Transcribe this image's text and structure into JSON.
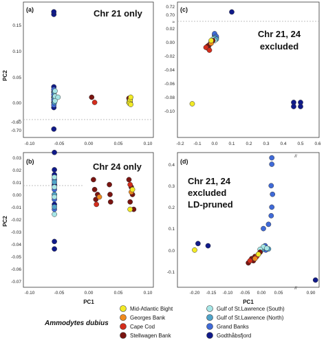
{
  "figure": {
    "x_axis_label": "PC1",
    "y_axis_label": "PC2",
    "species": "Ammodytes dubius",
    "series_colors": {
      "Mid-Atlantic Bight": "#f2ea25",
      "Georges Bank": "#f08a1e",
      "Cape Cod": "#d42d1c",
      "Stellwagen Bank": "#7a1410",
      "Gulf of St.Lawrence (South)": "#a6e6e6",
      "Gulf of St.Lawrence (North)": "#4fa3c9",
      "Grand Banks": "#3f6ad8",
      "Godthåbsfjord": "#101a8a"
    },
    "legend": {
      "left": [
        "Mid-Atlantic Bight",
        "Georges Bank",
        "Cape Cod",
        "Stellwagen Bank"
      ],
      "right": [
        "Gulf of St.Lawrence (South)",
        "Gulf of St.Lawrence (North)",
        "Grand Banks",
        "Godthåbsfjord"
      ]
    }
  },
  "chart_data": [
    {
      "type": "scatter",
      "panel": "(a)",
      "annotation": [
        "Chr 21 only"
      ],
      "xlim": [
        -0.1,
        0.12
      ],
      "x_ticks": [
        "-0.10",
        "-0.05",
        "0.00",
        "0.05",
        "0.10"
      ],
      "y_ticks": [
        "-0.70",
        "-0.60",
        "0.00",
        "0.05",
        "0.10",
        "0.15"
      ],
      "y_axis_break": "between -0.60 and 0.00",
      "series": [
        {
          "name": "Godthåbsfjord",
          "points": [
            [
              -0.059,
              0.17
            ],
            [
              -0.059,
              0.175
            ],
            [
              -0.059,
              0.03
            ],
            [
              -0.059,
              0.02
            ],
            [
              -0.059,
              0.01
            ],
            [
              -0.059,
              0.0
            ],
            [
              -0.059,
              -0.01
            ],
            [
              -0.059,
              -0.69
            ]
          ]
        },
        {
          "name": "Grand Banks",
          "points": [
            [
              -0.059,
              0.025
            ],
            [
              -0.059,
              0.015
            ],
            [
              -0.059,
              0.005
            ],
            [
              -0.059,
              -0.005
            ]
          ]
        },
        {
          "name": "Gulf of St.Lawrence (North)",
          "points": [
            [
              -0.058,
              0.02
            ],
            [
              -0.058,
              0.01
            ],
            [
              -0.058,
              0.0
            ]
          ]
        },
        {
          "name": "Gulf of St.Lawrence (South)",
          "points": [
            [
              -0.057,
              0.022
            ],
            [
              -0.057,
              0.012
            ],
            [
              -0.057,
              0.003
            ],
            [
              -0.052,
              0.01
            ]
          ]
        },
        {
          "name": "Stellwagen Bank",
          "points": [
            [
              0.005,
              0.01
            ],
            [
              0.07,
              0.0
            ],
            [
              0.07,
              0.005
            ],
            [
              0.068,
              0.008
            ]
          ]
        },
        {
          "name": "Cape Cod",
          "points": [
            [
              0.01,
              0.0
            ]
          ]
        },
        {
          "name": "Georges Bank",
          "points": [
            [
              0.069,
              0.003
            ],
            [
              0.07,
              0.007
            ]
          ]
        },
        {
          "name": "Mid-Atlantic Bight",
          "points": [
            [
              0.068,
              0.0
            ],
            [
              0.07,
              0.004
            ],
            [
              0.071,
              0.01
            ],
            [
              0.069,
              -0.002
            ],
            [
              0.071,
              -0.004
            ]
          ]
        }
      ]
    },
    {
      "type": "scatter",
      "panel": "(b)",
      "annotation": [
        "Chr 24 only"
      ],
      "xlim": [
        -0.1,
        0.12
      ],
      "x_ticks": [
        "-0.10",
        "-0.05",
        "0.00",
        "0.05",
        "0.10"
      ],
      "y_ticks": [
        "-0.07",
        "-0.06",
        "-0.05",
        "-0.04",
        "-0.03",
        "-0.02",
        "-0.01",
        "0.00",
        "0.01",
        "0.02",
        "0.03"
      ],
      "series": [
        {
          "name": "Godthåbsfjord",
          "points": [
            [
              -0.058,
              0.034
            ],
            [
              -0.058,
              0.02
            ],
            [
              -0.058,
              0.016
            ],
            [
              -0.058,
              0.008
            ],
            [
              -0.058,
              0.0
            ],
            [
              -0.058,
              -0.008
            ],
            [
              -0.058,
              -0.038
            ],
            [
              -0.058,
              -0.044
            ]
          ]
        },
        {
          "name": "Grand Banks",
          "points": [
            [
              -0.058,
              0.012
            ],
            [
              -0.058,
              0.004
            ],
            [
              -0.058,
              -0.004
            ],
            [
              -0.058,
              -0.012
            ]
          ]
        },
        {
          "name": "Gulf of St.Lawrence (North)",
          "points": [
            [
              -0.058,
              0.01
            ],
            [
              -0.058,
              0.0
            ],
            [
              -0.058,
              -0.01
            ]
          ]
        },
        {
          "name": "Gulf of St.Lawrence (South)",
          "points": [
            [
              -0.058,
              0.014
            ],
            [
              -0.058,
              0.006
            ],
            [
              -0.058,
              -0.002
            ],
            [
              -0.058,
              -0.016
            ]
          ]
        },
        {
          "name": "Stellwagen Bank",
          "points": [
            [
              0.008,
              0.012
            ],
            [
              0.01,
              0.004
            ],
            [
              0.012,
              -0.004
            ],
            [
              0.015,
              0.0
            ],
            [
              0.035,
              0.008
            ],
            [
              0.036,
              0.0
            ],
            [
              0.037,
              -0.006
            ],
            [
              0.068,
              0.012
            ],
            [
              0.072,
              0.006
            ],
            [
              0.074,
              0.0
            ],
            [
              0.07,
              -0.006
            ],
            [
              0.076,
              -0.012
            ]
          ]
        },
        {
          "name": "Cape Cod",
          "points": [
            [
              0.013,
              -0.008
            ],
            [
              0.07,
              0.008
            ]
          ]
        },
        {
          "name": "Georges Bank",
          "points": [
            [
              0.018,
              -0.002
            ],
            [
              0.072,
              0.002
            ]
          ]
        },
        {
          "name": "Mid-Atlantic Bight",
          "points": [
            [
              0.07,
              -0.012
            ],
            [
              0.074,
              0.004
            ]
          ]
        }
      ]
    },
    {
      "type": "scatter",
      "panel": "(c)",
      "annotation": [
        "Chr 21, 24",
        "excluded"
      ],
      "xlim": [
        -0.2,
        0.6
      ],
      "x_ticks": [
        "-0.2",
        "-0.1",
        "0.0",
        "0.1",
        "0.2",
        "0.3",
        "0.4",
        "0.5",
        "0.6"
      ],
      "y_ticks": [
        "-0.10",
        "-0.08",
        "-0.06",
        "-0.04",
        "-0.02",
        "0.00",
        "0.02",
        "0.70",
        "0.72"
      ],
      "y_axis_break": "between 0.02 and 0.70",
      "series": [
        {
          "name": "Godthåbsfjord",
          "points": [
            [
              0.1,
              0.706
            ],
            [
              0.0,
              0.01
            ],
            [
              0.01,
              0.006
            ],
            [
              0.46,
              -0.088
            ],
            [
              0.5,
              -0.088
            ],
            [
              0.46,
              -0.094
            ],
            [
              0.5,
              -0.094
            ]
          ]
        },
        {
          "name": "Grand Banks",
          "points": [
            [
              0.0,
              0.012
            ],
            [
              0.01,
              0.008
            ]
          ]
        },
        {
          "name": "Gulf of St.Lawrence (North)",
          "points": [
            [
              0.0,
              0.006
            ],
            [
              0.01,
              0.004
            ]
          ]
        },
        {
          "name": "Gulf of St.Lawrence (South)",
          "points": [
            [
              -0.01,
              0.004
            ],
            [
              0.0,
              0.002
            ]
          ]
        },
        {
          "name": "Stellwagen Bank",
          "points": [
            [
              -0.04,
              -0.006
            ],
            [
              -0.035,
              -0.01
            ],
            [
              -0.03,
              -0.004
            ],
            [
              -0.02,
              0.0
            ],
            [
              -0.01,
              0.002
            ]
          ]
        },
        {
          "name": "Cape Cod",
          "points": [
            [
              -0.05,
              -0.008
            ],
            [
              -0.03,
              -0.012
            ]
          ]
        },
        {
          "name": "Georges Bank",
          "points": [
            [
              -0.02,
              -0.002
            ]
          ]
        },
        {
          "name": "Mid-Atlantic Bight",
          "points": [
            [
              -0.13,
              -0.09
            ],
            [
              -0.02,
              0.002
            ]
          ]
        }
      ]
    },
    {
      "type": "scatter",
      "panel": "(d)",
      "annotation": [
        "Chr 21, 24",
        "excluded",
        "LD-pruned"
      ],
      "xlim": [
        -0.23,
        0.93
      ],
      "x_ticks": [
        "-0.20",
        "-0.15",
        "-0.10",
        "-0.05",
        "0.00",
        "0.05",
        "0.90"
      ],
      "y_ticks": [
        "-0.1",
        "0.0",
        "0.1",
        "0.2",
        "0.3",
        "0.4"
      ],
      "x_axis_break": "between 0.05 and 0.90",
      "series": [
        {
          "name": "Godthåbsfjord",
          "points": [
            [
              -0.19,
              0.03
            ],
            [
              -0.16,
              0.02
            ],
            [
              0.92,
              -0.14
            ]
          ]
        },
        {
          "name": "Grand Banks",
          "points": [
            [
              0.03,
              0.43
            ],
            [
              0.03,
              0.4
            ],
            [
              0.028,
              0.3
            ],
            [
              0.032,
              0.26
            ],
            [
              0.03,
              0.2
            ],
            [
              0.028,
              0.16
            ],
            [
              0.02,
              0.12
            ],
            [
              0.005,
              0.1
            ],
            [
              0.01,
              0.02
            ],
            [
              0.012,
              0.0
            ]
          ]
        },
        {
          "name": "Gulf of St.Lawrence (North)",
          "points": [
            [
              0.01,
              0.01
            ],
            [
              0.0,
              0.0
            ],
            [
              0.02,
              0.005
            ]
          ]
        },
        {
          "name": "Gulf of St.Lawrence (South)",
          "points": [
            [
              0.005,
              0.015
            ],
            [
              0.015,
              0.008
            ],
            [
              -0.005,
              0.003
            ]
          ]
        },
        {
          "name": "Stellwagen Bank",
          "points": [
            [
              -0.04,
              -0.06
            ],
            [
              -0.03,
              -0.04
            ],
            [
              -0.025,
              -0.05
            ],
            [
              -0.02,
              -0.03
            ],
            [
              -0.01,
              -0.02
            ],
            [
              -0.005,
              -0.01
            ]
          ]
        },
        {
          "name": "Cape Cod",
          "points": [
            [
              -0.035,
              -0.05
            ],
            [
              -0.015,
              -0.03
            ]
          ]
        },
        {
          "name": "Georges Bank",
          "points": [
            [
              -0.02,
              -0.04
            ]
          ]
        },
        {
          "name": "Mid-Atlantic Bight",
          "points": [
            [
              -0.2,
              0.0
            ],
            [
              -0.01,
              -0.02
            ]
          ]
        }
      ]
    }
  ]
}
